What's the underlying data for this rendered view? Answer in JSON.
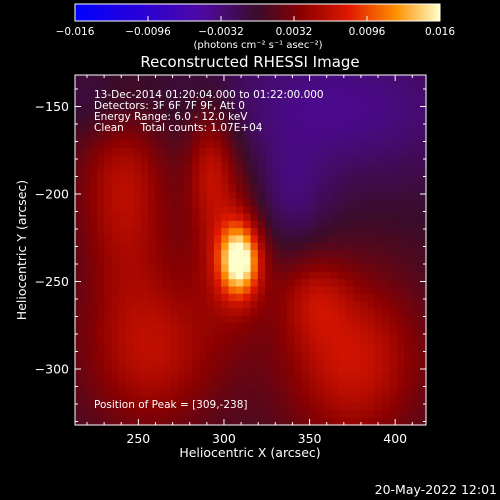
{
  "chart_data": {
    "type": "heatmap",
    "title": "Reconstructed RHESSI Image",
    "xlabel": "Heliocentric X (arcsec)",
    "ylabel": "Heliocentric Y (arcsec)",
    "xlim": [
      213,
      418
    ],
    "ylim": [
      -332,
      -132
    ],
    "x_ticks": [
      250,
      300,
      350,
      400
    ],
    "y_ticks": [
      -150,
      -200,
      -250,
      -300
    ],
    "x_tick_labels": [
      "250",
      "300",
      "350",
      "400"
    ],
    "y_tick_labels": [
      "−150",
      "−200",
      "−250",
      "−300"
    ],
    "colorbar": {
      "min": -0.016,
      "max": 0.016,
      "ticks": [
        -0.016,
        -0.0096,
        -0.0032,
        0.0032,
        0.0096,
        0.016
      ],
      "tick_labels": [
        "−0.016",
        "−0.0096",
        "−0.0032",
        "0.0032",
        "0.0096",
        "0.016"
      ],
      "units": "(photons cm⁻² s⁻¹ asec⁻²)"
    },
    "annotations": [
      "13-Dec-2014 01:20:04.000 to 01:22:00.000",
      "Detectors: 3F 6F 7F 9F, Att 0",
      "Energy Range: 6.0 - 12.0 keV",
      "Clean     Total counts: 1.07E+04",
      "Position of Peak = [309,-238]"
    ],
    "peak": {
      "x": 309,
      "y": -238,
      "value": 0.016
    },
    "sources": [
      {
        "x": 309,
        "y": -238,
        "amp": 0.0135,
        "sx": 8,
        "sy": 14
      },
      {
        "x": 305,
        "y": -225,
        "amp": 0.0055,
        "sx": 16,
        "sy": 34
      },
      {
        "x": 292,
        "y": -180,
        "amp": 0.0052,
        "sx": 10,
        "sy": 24
      },
      {
        "x": 242,
        "y": -195,
        "amp": 0.0062,
        "sx": 20,
        "sy": 42
      },
      {
        "x": 258,
        "y": -290,
        "amp": 0.006,
        "sx": 30,
        "sy": 34
      },
      {
        "x": 375,
        "y": -295,
        "amp": 0.007,
        "sx": 30,
        "sy": 36
      },
      {
        "x": 352,
        "y": -258,
        "amp": 0.0035,
        "sx": 14,
        "sy": 18
      },
      {
        "x": 365,
        "y": -150,
        "amp": -0.004,
        "sx": 60,
        "sy": 30
      },
      {
        "x": 335,
        "y": -205,
        "amp": -0.003,
        "sx": 18,
        "sy": 22
      },
      {
        "x": 232,
        "y": -148,
        "amp": -0.0025,
        "sx": 22,
        "sy": 16
      }
    ]
  },
  "footer": {
    "timestamp": "20-May-2022 12:01"
  }
}
